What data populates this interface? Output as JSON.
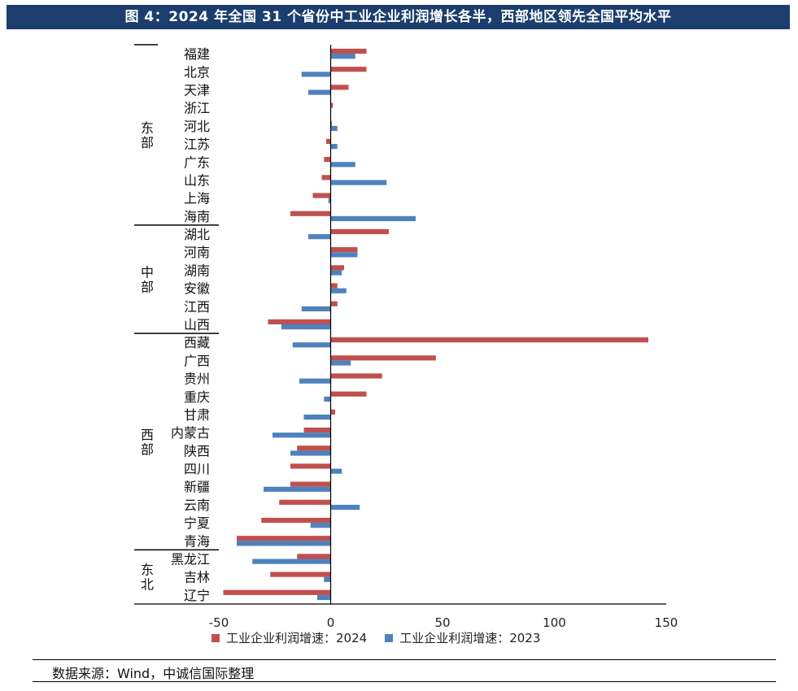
{
  "title": "图 4：2024 年全国 31 个省份中工业企业利润增长各半，西部地区领先全国平均水平",
  "source": "数据来源：Wind，中诚信国际整理",
  "colors": {
    "series2024": "#c0504d",
    "series2023": "#4f81bd",
    "title_bg": "#1b3e6e"
  },
  "chart_data": {
    "type": "bar",
    "orientation": "horizontal",
    "title": "图 4：2024 年全国 31 个省份中工业企业利润增长各半，西部地区领先全国平均水平",
    "xlabel": "",
    "ylabel": "",
    "xlim": [
      -50,
      150
    ],
    "xticks": [
      "-50",
      "0",
      "50",
      "100",
      "150"
    ],
    "tick_values": [
      -50,
      0,
      50,
      100,
      150
    ],
    "categories": [
      "福建",
      "北京",
      "天津",
      "浙江",
      "河北",
      "江苏",
      "广东",
      "山东",
      "上海",
      "海南",
      "湖北",
      "河南",
      "湖南",
      "安徽",
      "江西",
      "山西",
      "西藏",
      "广西",
      "贵州",
      "重庆",
      "甘肃",
      "内蒙古",
      "陕西",
      "四川",
      "新疆",
      "云南",
      "宁夏",
      "青海",
      "黑龙江",
      "吉林",
      "辽宁"
    ],
    "groups": [
      {
        "name": "东部",
        "count": 10
      },
      {
        "name": "中部",
        "count": 6
      },
      {
        "name": "西部",
        "count": 12
      },
      {
        "name": "东北",
        "count": 3
      }
    ],
    "series": [
      {
        "name": "工业企业利润增速：2024",
        "values": [
          16,
          16,
          8,
          1,
          0.5,
          -2,
          -3,
          -4,
          -8,
          -18,
          26,
          12,
          6,
          3,
          3,
          -28,
          142,
          47,
          23,
          16,
          2,
          -12,
          -15,
          -18,
          -18,
          -23,
          -31,
          -42,
          -15,
          -27,
          -48
        ]
      },
      {
        "name": "工业企业利润增速：2023",
        "values": [
          11,
          -13,
          -10,
          0,
          3,
          3,
          11,
          25,
          -1,
          38,
          -10,
          12,
          5,
          7,
          -13,
          -22,
          -17,
          9,
          -14,
          -3,
          -12,
          -26,
          -18,
          5,
          -30,
          13,
          -9,
          -42,
          -35,
          -3,
          -6
        ]
      }
    ]
  }
}
